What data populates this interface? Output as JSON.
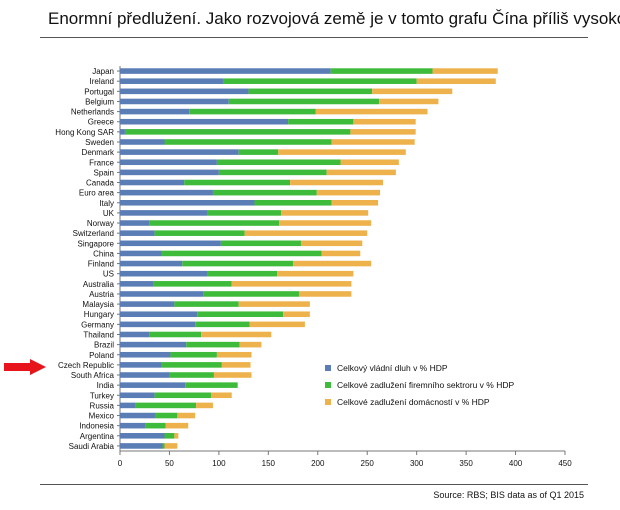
{
  "header": {
    "title": "Enormní předlužení. Jako rozvojová země je v tomto grafu Čína příliš vysoko"
  },
  "footer": {
    "source": "Source:  RBS; BIS data as of Q1 2015"
  },
  "highlight": {
    "category": "Czech Republic",
    "color": "#e8141c",
    "icon": "arrow-right-icon"
  },
  "chart_data": {
    "type": "bar",
    "orientation": "horizontal",
    "stacked": true,
    "title": "",
    "xlabel": "",
    "ylabel": "",
    "xlim": [
      0,
      450
    ],
    "xticks": [
      0,
      50,
      100,
      150,
      200,
      250,
      300,
      350,
      400,
      450
    ],
    "grid": false,
    "legend_position": "lower-right",
    "categories": [
      "Japan",
      "Ireland",
      "Portugal",
      "Belgium",
      "Netherlands",
      "Greece",
      "Hong Kong SAR",
      "Sweden",
      "Denmark",
      "France",
      "Spain",
      "Canada",
      "Euro area",
      "Italy",
      "UK",
      "Norway",
      "Switzerland",
      "Singapore",
      "China",
      "Finland",
      "US",
      "Australia",
      "Austria",
      "Malaysia",
      "Hungary",
      "Germany",
      "Thailand",
      "Brazil",
      "Poland",
      "Czech Republic",
      "South Africa",
      "India",
      "Turkey",
      "Russia",
      "Mexico",
      "Indonesia",
      "Argentina",
      "Saudi Arabia"
    ],
    "series": [
      {
        "name": "Celkový vládní dluh v % HDP",
        "color": "#5b7db6",
        "values": [
          213,
          105,
          130,
          110,
          70,
          170,
          5,
          45,
          120,
          98,
          100,
          65,
          94,
          136,
          88,
          30,
          35,
          102,
          42,
          63,
          88,
          34,
          84,
          55,
          78,
          76,
          30,
          67,
          51,
          42,
          50,
          66,
          35,
          16,
          36,
          26,
          45,
          43
        ]
      },
      {
        "name": "Celkové zadlužení firemního sektroru v % HDP",
        "color": "#3fbb3c",
        "values": [
          103,
          195,
          125,
          152,
          128,
          66,
          228,
          169,
          40,
          125,
          109,
          107,
          105,
          78,
          75,
          131,
          91,
          81,
          162,
          112,
          71,
          79,
          97,
          65,
          87,
          55,
          52,
          54,
          47,
          61,
          45,
          53,
          57,
          61,
          22,
          20,
          10,
          2
        ]
      },
      {
        "name": "Celkové zadlužení domácností v % HDP",
        "color": "#eeb24d",
        "values": [
          66,
          80,
          81,
          60,
          113,
          63,
          66,
          84,
          129,
          59,
          70,
          94,
          64,
          47,
          88,
          93,
          124,
          62,
          39,
          79,
          77,
          121,
          53,
          72,
          27,
          56,
          71,
          22,
          35,
          29,
          38,
          0,
          21,
          17,
          18,
          23,
          4,
          13
        ]
      }
    ]
  }
}
